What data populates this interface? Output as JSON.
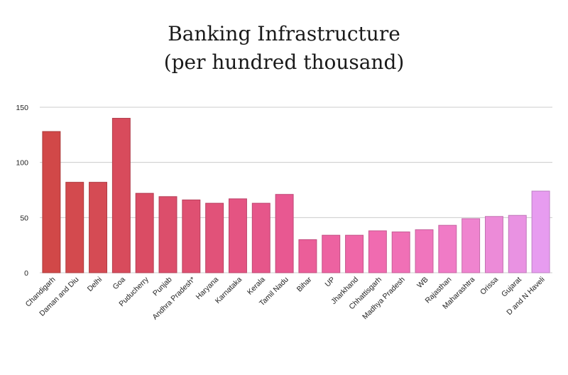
{
  "chart_data": {
    "type": "bar",
    "title_lines": [
      "Banking Infrastructure",
      "(per hundred thousand)"
    ],
    "xlabel": "",
    "ylabel": "",
    "ylim": [
      0,
      150
    ],
    "yticks": [
      0,
      50,
      100,
      150
    ],
    "grid": true,
    "legend": "none",
    "categories": [
      "Chandigarh",
      "Daman and Diu",
      "Delhi",
      "Goa",
      "Puducherry",
      "Punjab",
      "Andhra Pradesh*",
      "Haryana",
      "Karnataka",
      "Kerala",
      "Tamil Nadu",
      "Bihar",
      "UP",
      "Jharkhand",
      "Chhattisgarh",
      "Madhya Pradesh",
      "WB",
      "Rajasthan",
      "Maharashtra",
      "Orissa",
      "Gujarat",
      "D and N Haveli"
    ],
    "values": [
      128,
      82,
      82,
      140,
      72,
      69,
      66,
      63,
      67,
      63,
      71,
      30,
      34,
      34,
      38,
      37,
      39,
      43,
      49,
      51,
      52,
      74
    ],
    "colors": [
      "#d14848",
      "#d34a4e",
      "#d54b54",
      "#d84b5c",
      "#da4c64",
      "#dc4e6b",
      "#df5072",
      "#e15279",
      "#e45482",
      "#e6568a",
      "#e85891",
      "#eb5e99",
      "#ed62a1",
      "#ef67a8",
      "#f06bb0",
      "#f070b6",
      "#f075bd",
      "#f07bc6",
      "#ef84cf",
      "#ec8bd8",
      "#e992e2",
      "#e79cf0"
    ],
    "gridline_color": "#cccccc",
    "bar_edge_darken": true
  }
}
